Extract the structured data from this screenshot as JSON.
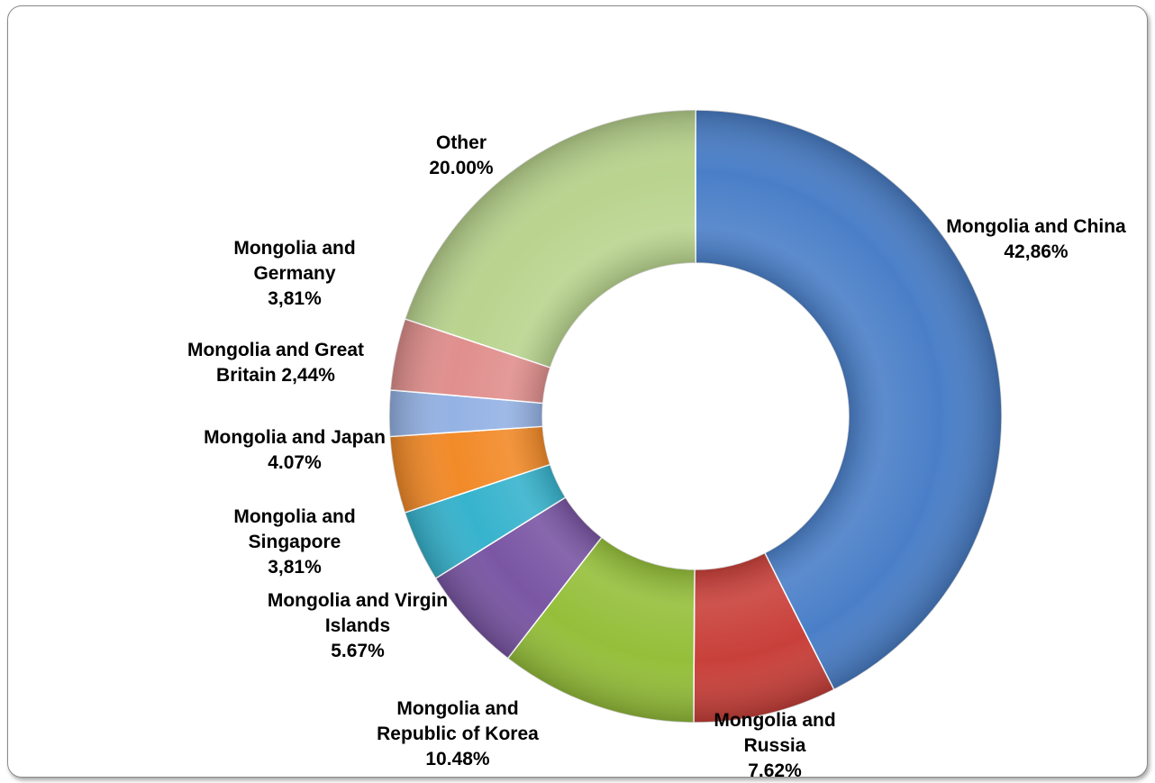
{
  "chart_data": {
    "type": "donut",
    "slices": [
      {
        "label": "Mongolia and China",
        "value_text": "42,86%",
        "value": 42.86,
        "color": "#4a7fc8"
      },
      {
        "label": "Mongolia and Russia",
        "value_text": "7.62%",
        "value": 7.62,
        "color": "#c9403a"
      },
      {
        "label": "Mongolia and Republic of Korea",
        "value_text": "10.48%",
        "value": 10.48,
        "color": "#95bf3a"
      },
      {
        "label": "Mongolia and Virgin Islands",
        "value_text": "5.67%",
        "value": 5.67,
        "color": "#7a56a4"
      },
      {
        "label": "Mongolia and Singapore",
        "value_text": "3,81%",
        "value": 3.81,
        "color": "#37b3cd"
      },
      {
        "label": "Mongolia and Japan",
        "value_text": "4.07%",
        "value": 4.07,
        "color": "#f28a28"
      },
      {
        "label": "Mongolia and Great Britain",
        "value_text": "2,44%",
        "value": 2.44,
        "color": "#94b2e4"
      },
      {
        "label": "Mongolia and Germany",
        "value_text": "3,81%",
        "value": 3.81,
        "color": "#e08f8d"
      },
      {
        "label": "Other",
        "value_text": "20.00%",
        "value": 20.0,
        "color": "#b9d48e"
      }
    ]
  }
}
